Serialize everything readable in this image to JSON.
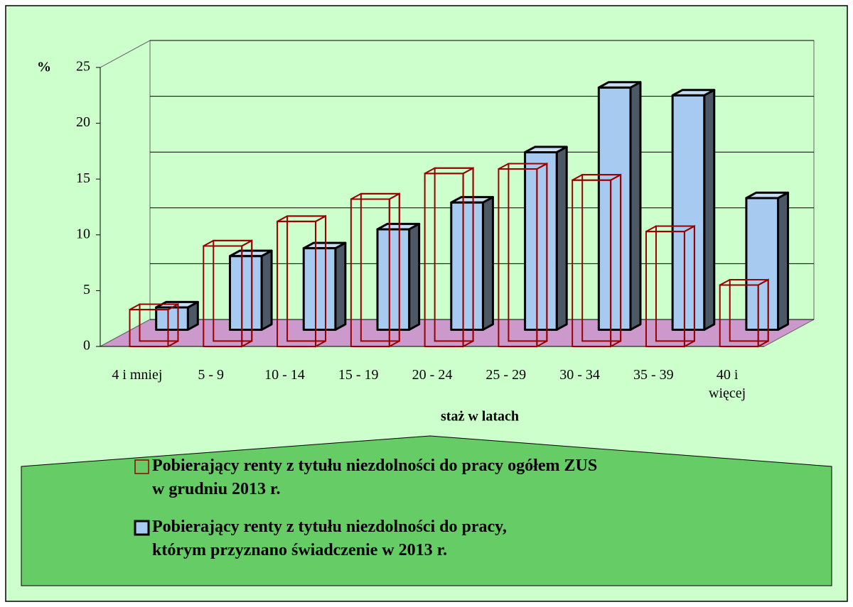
{
  "chart_data": {
    "type": "bar3d",
    "y_label": "%",
    "x_label": "staż w latach",
    "categories": [
      "4 i mniej",
      "5 - 9",
      "10 - 14",
      "15 - 19",
      "20 - 24",
      "25 - 29",
      "30 - 34",
      "35 - 39",
      "40 i więcej"
    ],
    "series": [
      {
        "name": "Pobierający renty z tytułu niezdolności do pracy ogółem ZUS\nw grudniu 2013 r.",
        "color": "#990000",
        "values": [
          3.3,
          9.0,
          11.2,
          13.2,
          15.5,
          15.9,
          14.9,
          10.3,
          5.5
        ]
      },
      {
        "name": "Pobierający renty z tytułu niezdolności do pracy,\nktórym przyznano świadczenie w 2013 r.",
        "color": "#a6caf0",
        "values": [
          2.0,
          6.6,
          7.3,
          9.0,
          11.4,
          15.9,
          21.7,
          21.0,
          11.8
        ]
      }
    ],
    "ylim": [
      0,
      25
    ],
    "yticks": [
      0,
      5,
      10,
      15,
      20,
      25
    ],
    "grid": true
  }
}
